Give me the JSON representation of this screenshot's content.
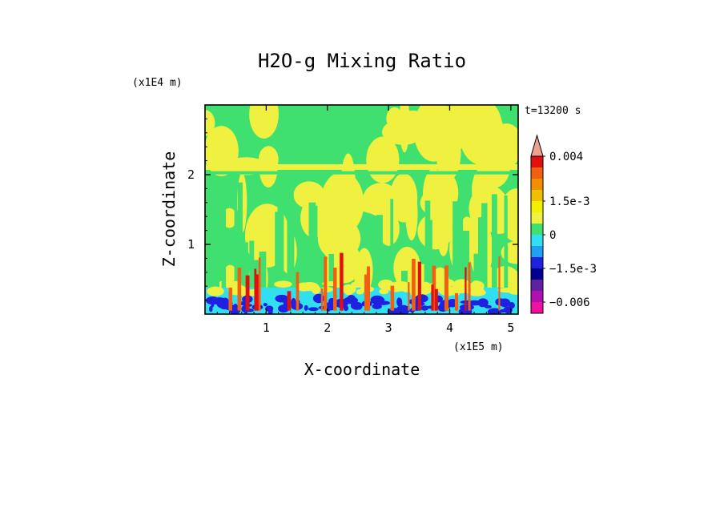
{
  "chart_data": {
    "type": "heatmap",
    "title": "H2O-g Mixing Ratio",
    "xlabel": "X-coordinate",
    "ylabel": "Z-coordinate",
    "x_scale_label": "(x1E5 m)",
    "y_scale_label": "(x1E4 m)",
    "time_label": "t=13200 s",
    "xlim": [
      0,
      5.12
    ],
    "ylim": [
      0,
      3.0
    ],
    "x_ticks": [
      "1",
      "2",
      "3",
      "4",
      "5"
    ],
    "x_tick_values": [
      1,
      2,
      3,
      4,
      5
    ],
    "y_ticks": [
      "1",
      "2"
    ],
    "y_tick_values": [
      1,
      2
    ],
    "colorbar": {
      "labels": [
        "0.004",
        "1.5e-3",
        "0",
        "−1.5e-3",
        "−0.006"
      ],
      "label_levels": [
        0.004,
        0.0015,
        0,
        -0.0015,
        -0.006
      ],
      "levels": [
        0.005,
        0.004,
        0.003,
        0.0025,
        0.002,
        0.0015,
        0.001,
        0.0005,
        0,
        -0.0005,
        -0.001,
        -0.0015,
        -0.002,
        -0.004,
        -0.006,
        -0.008
      ],
      "colors": [
        "#f0a090",
        "#e01010",
        "#f06010",
        "#f09000",
        "#f0c000",
        "#f0f000",
        "#f0f040",
        "#40e070",
        "#30e0f0",
        "#20a0f0",
        "#2020e0",
        "#000090",
        "#6020a0",
        "#b010b0",
        "#f010a0"
      ],
      "extend": "max"
    },
    "field_band_colors": {
      "upper_green": "#40e070",
      "yellow": "#f0f040",
      "cyan": "#30e0f0",
      "blue": "#2020e0",
      "red": "#e01010",
      "orange": "#f06010"
    }
  }
}
